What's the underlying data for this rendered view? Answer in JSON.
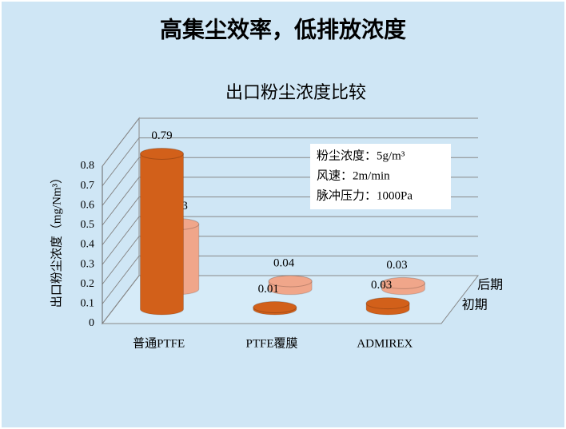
{
  "page_title": "高集尘效率，低排放浓度",
  "chart_data": {
    "type": "bar3d",
    "title": "出口粉尘浓度比较",
    "y_label": "出口粉尘浓度（mg/Nm³）",
    "categories": [
      "普通PTFE",
      "PTFE覆膜",
      "ADMIREX"
    ],
    "series": [
      {
        "name": "初期",
        "color": "#d2601a",
        "values": [
          0.79,
          0.01,
          0.03
        ]
      },
      {
        "name": "后期",
        "color": "#f0a68a",
        "values": [
          0.33,
          0.04,
          0.03
        ]
      }
    ],
    "ylim": [
      0,
      0.8
    ],
    "yticks": [
      0,
      0.1,
      0.2,
      0.3,
      0.4,
      0.5,
      0.6,
      0.7,
      0.8
    ],
    "grid": true,
    "annotation": [
      "粉尘浓度：5g/m³",
      "风速：2m/min",
      "脉冲压力：1000Pa"
    ]
  }
}
